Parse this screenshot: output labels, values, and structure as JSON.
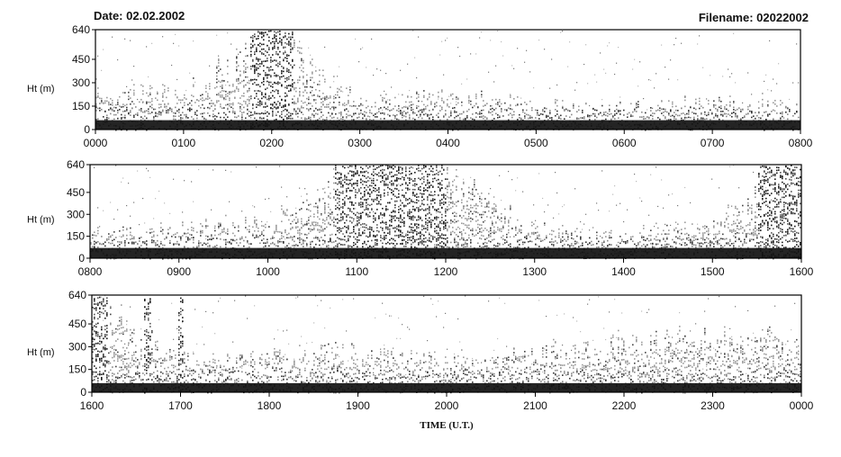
{
  "header": {
    "date": "Date: 02.02.2002",
    "filename": "Filename: 02022002"
  },
  "chart_data": [
    {
      "type": "heatmap",
      "panel": 1,
      "ylabel": "Ht (m)",
      "yticks": [
        0,
        150,
        300,
        450,
        640
      ],
      "ylim": [
        0,
        640
      ],
      "xticks": [
        "0000",
        "0100",
        "0200",
        "0300",
        "0400",
        "0500",
        "0600",
        "0700",
        "0800"
      ],
      "xlim": [
        "0000",
        "0800"
      ],
      "mean_echo_top_m": [
        300,
        250,
        640,
        220,
        250,
        180,
        170,
        220,
        200
      ],
      "dense_bands": [
        [
          "0145",
          "0215"
        ]
      ],
      "black_layer_top_m": 60
    },
    {
      "type": "heatmap",
      "panel": 2,
      "ylabel": "Ht (m)",
      "yticks": [
        0,
        150,
        300,
        450,
        640
      ],
      "ylim": [
        0,
        640
      ],
      "xticks": [
        "0800",
        "0900",
        "1000",
        "1100",
        "1200",
        "1300",
        "1400",
        "1500",
        "1600"
      ],
      "xlim": [
        "0800",
        "1600"
      ],
      "mean_echo_top_m": [
        200,
        250,
        280,
        640,
        640,
        220,
        200,
        260,
        640
      ],
      "dense_bands": [
        [
          "1045",
          "1200"
        ],
        [
          "1530",
          "1600"
        ]
      ],
      "black_layer_top_m": 70
    },
    {
      "type": "heatmap",
      "panel": 3,
      "ylabel": "Ht (m)",
      "yticks": [
        0,
        150,
        300,
        450,
        640
      ],
      "ylim": [
        0,
        640
      ],
      "xticks": [
        "1600",
        "1700",
        "1800",
        "1900",
        "2000",
        "2100",
        "2200",
        "2300",
        "0000"
      ],
      "xlim": [
        "1600",
        "0000"
      ],
      "mean_echo_top_m": [
        640,
        250,
        280,
        300,
        250,
        300,
        380,
        400,
        380
      ],
      "dense_bands": [
        [
          "1600",
          "1610"
        ],
        [
          "1635",
          "1640"
        ],
        [
          "1658",
          "1702"
        ]
      ],
      "black_layer_top_m": 60,
      "xlabel": "TIME (U.T.)"
    }
  ],
  "colors": {
    "black_layer": "#111111",
    "echo_grey": "#888888",
    "echo_dark": "#222222",
    "frame": "#000000"
  }
}
